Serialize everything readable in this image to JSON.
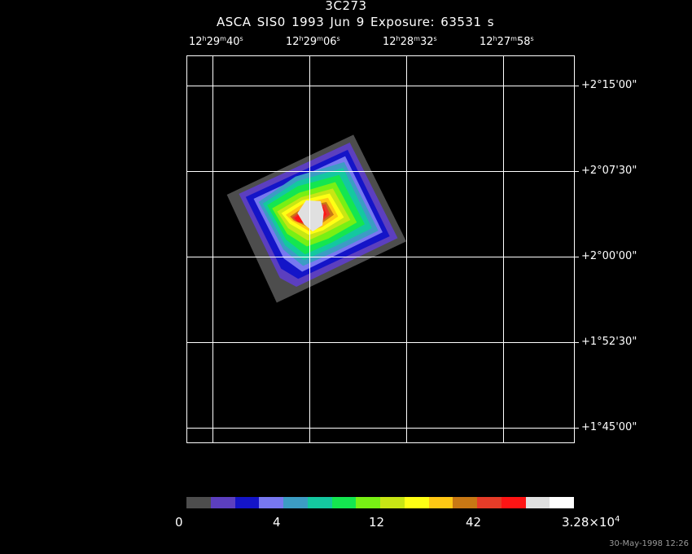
{
  "header": {
    "title": "3C273",
    "subtitle": "ASCA SIS0   1993 Jun  9    Exposure: 63531 s"
  },
  "ra_ticks": [
    {
      "h": "12",
      "m": "29",
      "s": "40"
    },
    {
      "h": "12",
      "m": "29",
      "s": "06"
    },
    {
      "h": "12",
      "m": "28",
      "s": "32"
    },
    {
      "h": "12",
      "m": "27",
      "s": "58"
    }
  ],
  "ra_units": {
    "h": "h",
    "m": "m",
    "s": "s"
  },
  "dec_ticks": [
    "+2°15'00\"",
    "+2°07'30\"",
    "+2°00'00\"",
    "+1°52'30\"",
    "+1°45'00\""
  ],
  "colorbar": {
    "labels": [
      "0",
      "4",
      "12",
      "42"
    ],
    "max_mantissa": "3.28×10",
    "max_exponent": "4",
    "colors": [
      "#4d4d4d",
      "#5c3fbf",
      "#1414c8",
      "#7878f0",
      "#3c9cc4",
      "#14c8a0",
      "#14e650",
      "#78f014",
      "#c8e614",
      "#ffff14",
      "#ffc814",
      "#c87814",
      "#e63c28",
      "#ff1414",
      "#e0e0e0",
      "#ffffff"
    ]
  },
  "footer": {
    "timestamp": "30-May-1998 12:26"
  }
}
